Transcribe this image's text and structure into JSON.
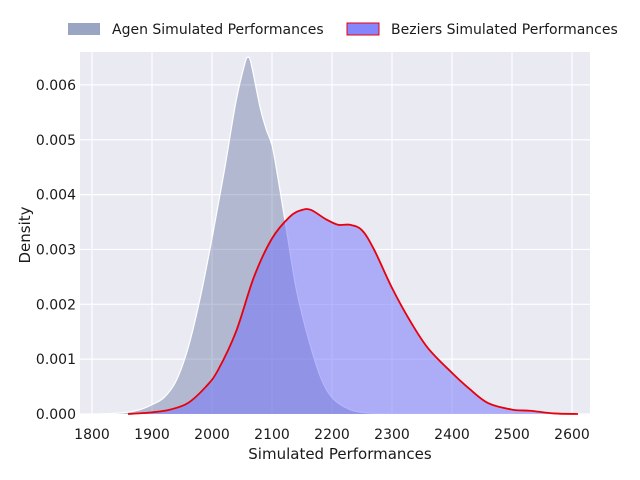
{
  "chart_data": {
    "type": "area",
    "title": "",
    "xlabel": "Simulated Performances",
    "ylabel": "Density",
    "xlim": [
      1780,
      2630
    ],
    "ylim": [
      0,
      0.0066
    ],
    "x_ticks": [
      1800,
      1900,
      2000,
      2100,
      2200,
      2300,
      2400,
      2500,
      2600
    ],
    "y_ticks": [
      0.0,
      0.001,
      0.002,
      0.003,
      0.004,
      0.005,
      0.006
    ],
    "x_tick_labels": [
      "1800",
      "1900",
      "2000",
      "2100",
      "2200",
      "2300",
      "2400",
      "2500",
      "2600"
    ],
    "y_tick_labels": [
      "0.000",
      "0.001",
      "0.002",
      "0.003",
      "0.004",
      "0.005",
      "0.006"
    ],
    "grid": true,
    "legend_position": "top-center",
    "series": [
      {
        "name": "Agen Simulated Performances",
        "fill_color": "#3a4f8a",
        "fill_opacity": 0.32,
        "line_color": "#ffffff",
        "points": [
          [
            1810,
            0.0
          ],
          [
            1850,
            2e-05
          ],
          [
            1880,
            8e-05
          ],
          [
            1900,
            0.00017
          ],
          [
            1920,
            0.0003
          ],
          [
            1940,
            0.0006
          ],
          [
            1960,
            0.0012
          ],
          [
            1980,
            0.0021
          ],
          [
            2000,
            0.0032
          ],
          [
            2020,
            0.0044
          ],
          [
            2040,
            0.0057
          ],
          [
            2055,
            0.0064
          ],
          [
            2060,
            0.0065
          ],
          [
            2065,
            0.0064
          ],
          [
            2080,
            0.0056
          ],
          [
            2090,
            0.0052
          ],
          [
            2100,
            0.0049
          ],
          [
            2110,
            0.0043
          ],
          [
            2125,
            0.0033
          ],
          [
            2140,
            0.0023
          ],
          [
            2160,
            0.0014
          ],
          [
            2180,
            0.0007
          ],
          [
            2200,
            0.0003
          ],
          [
            2230,
            8e-05
          ],
          [
            2260,
            2e-05
          ],
          [
            2300,
            0.0
          ],
          [
            2400,
            0.0
          ],
          [
            2500,
            0.0
          ],
          [
            2600,
            0.0
          ]
        ]
      },
      {
        "name": "Beziers Simulated Performances",
        "fill_color": "#6d6dfc",
        "fill_opacity": 0.5,
        "line_color": "#e8000b",
        "points": [
          [
            1860,
            0.0
          ],
          [
            1900,
            3e-05
          ],
          [
            1930,
            8e-05
          ],
          [
            1960,
            0.0002
          ],
          [
            1990,
            0.0005
          ],
          [
            2010,
            0.0008
          ],
          [
            2040,
            0.0015
          ],
          [
            2070,
            0.0025
          ],
          [
            2100,
            0.0032
          ],
          [
            2130,
            0.0036
          ],
          [
            2150,
            0.00372
          ],
          [
            2165,
            0.00372
          ],
          [
            2190,
            0.00355
          ],
          [
            2210,
            0.00345
          ],
          [
            2230,
            0.00345
          ],
          [
            2250,
            0.00335
          ],
          [
            2270,
            0.003
          ],
          [
            2300,
            0.0023
          ],
          [
            2330,
            0.0017
          ],
          [
            2360,
            0.0012
          ],
          [
            2400,
            0.00075
          ],
          [
            2430,
            0.00045
          ],
          [
            2460,
            0.0002
          ],
          [
            2500,
            8e-05
          ],
          [
            2530,
            6e-05
          ],
          [
            2570,
            1e-05
          ],
          [
            2610,
            0.0
          ]
        ]
      }
    ]
  }
}
